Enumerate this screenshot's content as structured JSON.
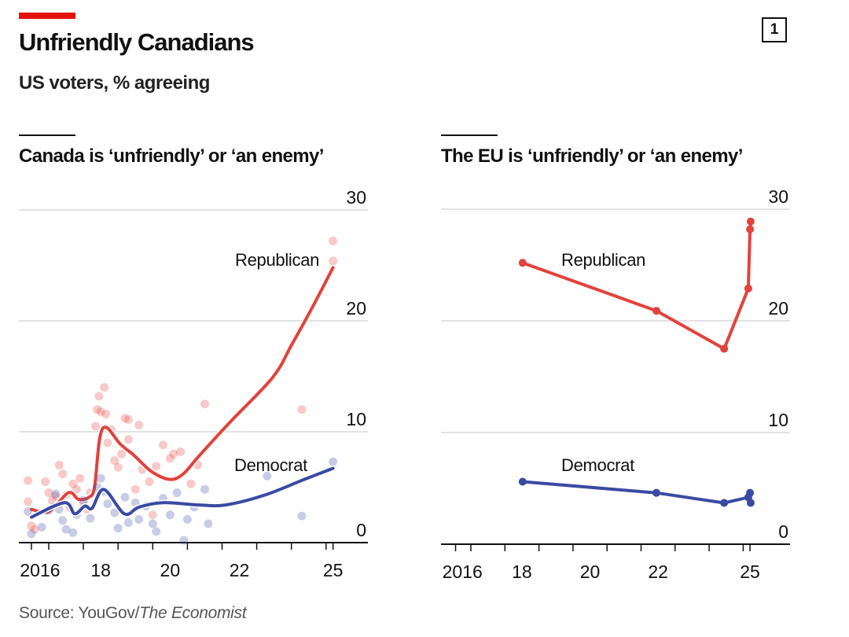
{
  "header": {
    "title": "Unfriendly Canadians",
    "subtitle": "US voters, % agreeing",
    "badge": "1"
  },
  "source": {
    "prefix": "Source: YouGov/",
    "publication": "The Economist"
  },
  "colors": {
    "republican": "#e3423d",
    "democrat": "#3a4aa3",
    "accent": "#e3120b",
    "grid": "#d9d9d9"
  },
  "chart_data": [
    {
      "type": "line",
      "title": "Canada is ‘unfriendly’ or ‘an enemy’",
      "ylim": [
        0,
        30
      ],
      "yticks": [
        "0",
        "10",
        "20",
        "30"
      ],
      "xticklabels": [
        "2016",
        "18",
        "20",
        "22",
        "25"
      ],
      "grid": true,
      "series": [
        {
          "name": "Republican",
          "style": "smoothed trend with scatter",
          "trend": [
            [
              2016.5,
              3.0
            ],
            [
              2017.0,
              2.8
            ],
            [
              2017.57,
              4.5
            ],
            [
              2017.86,
              3.9
            ],
            [
              2018.16,
              4.1
            ],
            [
              2018.32,
              5.0
            ],
            [
              2018.47,
              9.4
            ],
            [
              2018.66,
              10.4
            ],
            [
              2019.06,
              8.9
            ],
            [
              2019.45,
              7.9
            ],
            [
              2019.97,
              6.4
            ],
            [
              2020.5,
              5.7
            ],
            [
              2020.88,
              6.2
            ],
            [
              2021.33,
              7.8
            ],
            [
              2022.24,
              10.9
            ],
            [
              2023.46,
              14.9
            ],
            [
              2024.0,
              17.8
            ],
            [
              2024.6,
              21.2
            ],
            [
              2025.2,
              24.8
            ]
          ],
          "points": [
            [
              2016.4,
              5.6
            ],
            [
              2016.4,
              3.7
            ],
            [
              2016.5,
              1.5
            ],
            [
              2016.6,
              1.2
            ],
            [
              2016.9,
              5.5
            ],
            [
              2017.0,
              4.5
            ],
            [
              2017.1,
              3.8
            ],
            [
              2017.2,
              4.2
            ],
            [
              2017.3,
              7.0
            ],
            [
              2017.4,
              6.2
            ],
            [
              2017.5,
              4.3
            ],
            [
              2017.6,
              3.2
            ],
            [
              2017.7,
              5.3
            ],
            [
              2017.8,
              4.8
            ],
            [
              2017.9,
              5.8
            ],
            [
              2018.0,
              3.6
            ],
            [
              2018.1,
              3.0
            ],
            [
              2018.2,
              4.5
            ],
            [
              2018.35,
              10.5
            ],
            [
              2018.4,
              12.0
            ],
            [
              2018.45,
              13.2
            ],
            [
              2018.5,
              11.8
            ],
            [
              2018.6,
              14.0
            ],
            [
              2018.65,
              11.6
            ],
            [
              2018.7,
              9.0
            ],
            [
              2018.8,
              10.2
            ],
            [
              2018.9,
              7.4
            ],
            [
              2019.0,
              6.8
            ],
            [
              2019.1,
              8.0
            ],
            [
              2019.2,
              11.2
            ],
            [
              2019.3,
              11.1
            ],
            [
              2019.3,
              9.3
            ],
            [
              2019.5,
              4.8
            ],
            [
              2019.6,
              10.6
            ],
            [
              2019.7,
              6.6
            ],
            [
              2019.9,
              5.5
            ],
            [
              2020.0,
              2.5
            ],
            [
              2020.1,
              6.9
            ],
            [
              2020.3,
              8.8
            ],
            [
              2020.5,
              7.6
            ],
            [
              2020.6,
              8.0
            ],
            [
              2020.8,
              8.2
            ],
            [
              2021.1,
              5.3
            ],
            [
              2021.3,
              7.0
            ],
            [
              2021.5,
              12.5
            ],
            [
              2024.3,
              12.0
            ],
            [
              2025.2,
              27.2
            ],
            [
              2025.2,
              25.4
            ]
          ]
        },
        {
          "name": "Democrat",
          "style": "smoothed trend with scatter",
          "trend": [
            [
              2016.5,
              2.3
            ],
            [
              2017.45,
              3.6
            ],
            [
              2017.75,
              2.6
            ],
            [
              2018.04,
              3.3
            ],
            [
              2018.25,
              3.1
            ],
            [
              2018.59,
              4.8
            ],
            [
              2019.18,
              2.6
            ],
            [
              2019.6,
              3.2
            ],
            [
              2020.29,
              3.6
            ],
            [
              2021.33,
              3.4
            ],
            [
              2022.1,
              3.4
            ],
            [
              2023.24,
              4.3
            ],
            [
              2024.37,
              5.7
            ],
            [
              2025.2,
              6.7
            ]
          ],
          "points": [
            [
              2016.4,
              2.8
            ],
            [
              2016.5,
              0.8
            ],
            [
              2016.8,
              1.4
            ],
            [
              2017.0,
              2.9
            ],
            [
              2017.2,
              4.4
            ],
            [
              2017.3,
              3.0
            ],
            [
              2017.4,
              2.0
            ],
            [
              2017.5,
              1.2
            ],
            [
              2017.7,
              0.9
            ],
            [
              2017.8,
              2.5
            ],
            [
              2018.0,
              3.8
            ],
            [
              2018.2,
              2.2
            ],
            [
              2018.4,
              5.0
            ],
            [
              2018.5,
              5.8
            ],
            [
              2018.6,
              4.6
            ],
            [
              2018.7,
              3.5
            ],
            [
              2018.9,
              2.7
            ],
            [
              2019.0,
              1.3
            ],
            [
              2019.2,
              4.1
            ],
            [
              2019.3,
              1.8
            ],
            [
              2019.5,
              3.6
            ],
            [
              2019.6,
              2.1
            ],
            [
              2019.8,
              3.3
            ],
            [
              2020.0,
              1.7
            ],
            [
              2020.1,
              1.0
            ],
            [
              2020.3,
              4.0
            ],
            [
              2020.5,
              2.5
            ],
            [
              2020.7,
              4.5
            ],
            [
              2020.9,
              0.2
            ],
            [
              2021.0,
              2.1
            ],
            [
              2021.2,
              3.2
            ],
            [
              2021.5,
              4.8
            ],
            [
              2021.6,
              1.7
            ],
            [
              2023.3,
              6.0
            ],
            [
              2024.3,
              2.4
            ],
            [
              2025.2,
              7.3
            ]
          ]
        }
      ]
    },
    {
      "type": "line",
      "title": "The EU is ‘unfriendly’ or ‘an enemy’",
      "ylim": [
        0,
        30
      ],
      "yticks": [
        "0",
        "10",
        "20",
        "30"
      ],
      "xticklabels": [
        "2016",
        "18",
        "20",
        "22",
        "25"
      ],
      "grid": true,
      "series": [
        {
          "name": "Republican",
          "style": "line with markers",
          "points": [
            [
              2018.52,
              25.2
            ],
            [
              2022.45,
              20.9
            ],
            [
              2024.44,
              17.5
            ],
            [
              2025.15,
              22.9
            ],
            [
              2025.2,
              28.2
            ],
            [
              2025.22,
              28.9
            ]
          ]
        },
        {
          "name": "Democrat",
          "style": "line with markers",
          "points": [
            [
              2018.52,
              5.6
            ],
            [
              2022.45,
              4.6
            ],
            [
              2024.44,
              3.7
            ],
            [
              2025.15,
              4.2
            ],
            [
              2025.2,
              4.6
            ],
            [
              2025.22,
              3.7
            ]
          ]
        }
      ]
    }
  ]
}
